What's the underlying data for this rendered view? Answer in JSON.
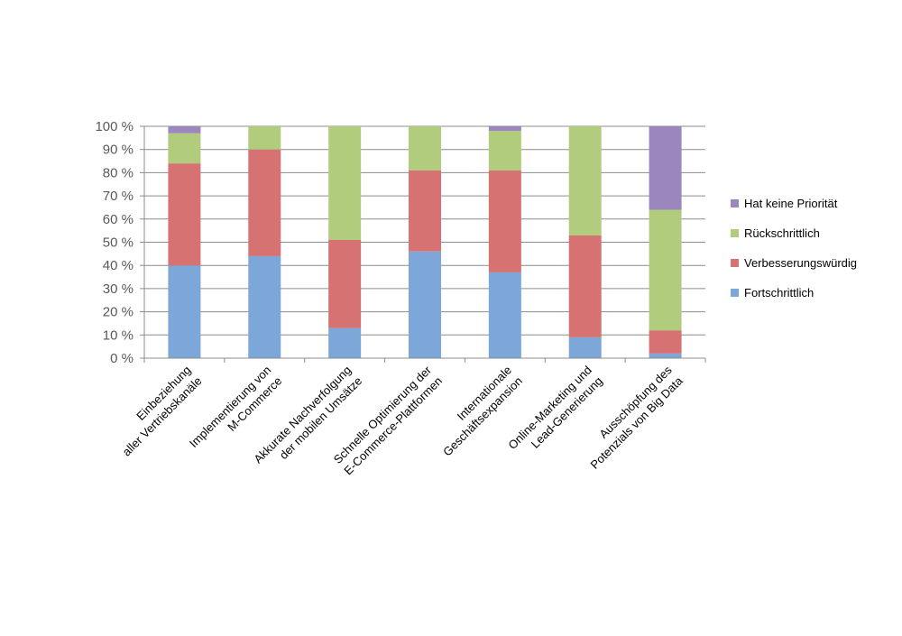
{
  "chart_data": {
    "type": "bar",
    "stacked": true,
    "percent": true,
    "ylim": [
      0,
      100
    ],
    "ytick_step": 10,
    "ytick_suffix": " %",
    "grid": true,
    "legend_position": "right",
    "categories": [
      [
        "Einbeziehung",
        "aller Vertriebskanäle"
      ],
      [
        "Implementierung von",
        "M-Commerce"
      ],
      [
        "Akkurate Nachverfolgung",
        "der mobilen Umsätze"
      ],
      [
        "Schnelle Optimierung der",
        "E-Commerce-Plattformen"
      ],
      [
        "Internationale",
        "Geschäftsexpansion"
      ],
      [
        "Online-Marketing und",
        "Lead-Generierung"
      ],
      [
        "Ausschöpfung des",
        "Potenzials von Big Data"
      ]
    ],
    "series": [
      {
        "name": "Fortschrittlich",
        "color": "#7da7d9",
        "values": [
          40,
          44,
          13,
          46,
          37,
          9,
          2
        ]
      },
      {
        "name": "Verbesserungswürdig",
        "color": "#d77272",
        "values": [
          44,
          46,
          38,
          35,
          44,
          44,
          10
        ]
      },
      {
        "name": "Rückschrittlich",
        "color": "#b0cc7c",
        "values": [
          13,
          10,
          49,
          19,
          17,
          47,
          52
        ]
      },
      {
        "name": "Hat keine Priorität",
        "color": "#9b86bd",
        "values": [
          3,
          0,
          0,
          0,
          2,
          0,
          36
        ]
      }
    ]
  }
}
